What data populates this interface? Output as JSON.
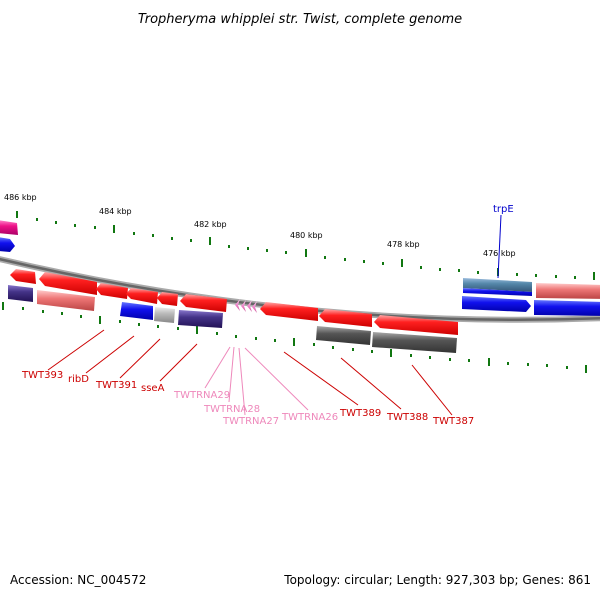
{
  "title": "Tropheryma whipplei str. Twist, complete genome",
  "footer": {
    "accession": "Accession: NC_004572",
    "topology": "Topology: circular; Length: 927,303 bp; Genes: 861"
  },
  "colors": {
    "forward_gene": "#ee1111",
    "reverse_gene": "#ee1111",
    "blue_feature": "#1111ee",
    "navy_feature": "#443388",
    "pink_feature": "#ee7777",
    "gray_feature": "#555555",
    "trna": "#ee88cc",
    "red_label": "#cc0000",
    "trna_label": "#ee88bb",
    "blue_label": "#0000cc",
    "tick": "#117711"
  },
  "ticks": [
    {
      "label": "486 kbp"
    },
    {
      "label": "484 kbp"
    },
    {
      "label": "482 kbp"
    },
    {
      "label": "480 kbp"
    },
    {
      "label": "478 kbp"
    },
    {
      "label": "476 kbp"
    }
  ],
  "labels": {
    "trpE": "trpE",
    "TWT393": "TWT393",
    "ribD": "ribD",
    "TWT391": "TWT391",
    "sseA": "sseA",
    "TWTRNA29": "TWTRNA29",
    "TWTRNA28": "TWTRNA28",
    "TWTRNA27": "TWTRNA27",
    "TWTRNA26": "TWTRNA26",
    "TWT389": "TWT389",
    "TWT388": "TWT388",
    "TWT387": "TWT387"
  }
}
